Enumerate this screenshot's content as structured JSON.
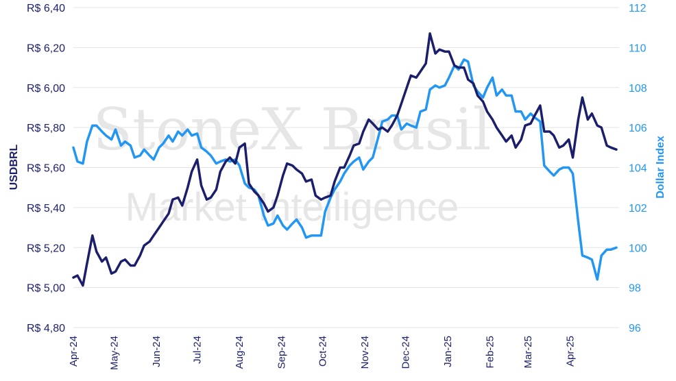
{
  "watermark": {
    "line1": "StoneX Brasil",
    "line2": "Market Intelligence"
  },
  "chart_data": {
    "type": "line",
    "ylabel": "USDBRL",
    "y2label": "Dollar Index",
    "ylim": [
      4.8,
      6.4
    ],
    "y2lim": [
      96,
      112
    ],
    "yticks": [
      4.8,
      5.0,
      5.2,
      5.4,
      5.6,
      5.8,
      6.0,
      6.2,
      6.4
    ],
    "y_tick_labels": [
      "R$ 4,80",
      "R$ 5,00",
      "R$ 5,20",
      "R$ 5,40",
      "R$ 5,60",
      "R$ 5,80",
      "R$ 6,00",
      "R$ 6,20",
      "R$ 6,40"
    ],
    "y2ticks": [
      96,
      98,
      100,
      102,
      104,
      106,
      108,
      110,
      112
    ],
    "y2_tick_labels": [
      "96",
      "98",
      "100",
      "102",
      "104",
      "106",
      "108",
      "110",
      "112"
    ],
    "xlim": [
      "2024-04-01",
      "2025-05-07"
    ],
    "x_ticks": [
      "2024-04-01",
      "2024-05-01",
      "2024-06-01",
      "2024-07-01",
      "2024-08-01",
      "2024-09-01",
      "2024-10-01",
      "2024-11-01",
      "2024-12-01",
      "2025-01-01",
      "2025-02-01",
      "2025-03-01",
      "2025-04-01"
    ],
    "x_tick_labels": [
      "Apr-24",
      "May-24",
      "Jun-24",
      "Jul-24",
      "Aug-24",
      "Sep-24",
      "Oct-24",
      "Nov-24",
      "Dec-24",
      "Jan-25",
      "Feb-25",
      "Mar-25",
      "Apr-25"
    ],
    "grid": true,
    "colors": {
      "usdbrl": "#1b1f6b",
      "dxy": "#2196f3",
      "grid": "#e3e3e3"
    },
    "series": [
      {
        "axis": "left",
        "x": [
          "2024-04-01",
          "2024-04-04",
          "2024-04-08",
          "2024-04-11",
          "2024-04-15",
          "2024-04-18",
          "2024-04-22",
          "2024-04-25",
          "2024-04-29",
          "2024-05-02",
          "2024-05-06",
          "2024-05-09",
          "2024-05-13",
          "2024-05-16",
          "2024-05-20",
          "2024-05-23",
          "2024-05-27",
          "2024-05-30",
          "2024-06-03",
          "2024-06-06",
          "2024-06-10",
          "2024-06-13",
          "2024-06-17",
          "2024-06-20",
          "2024-06-24",
          "2024-06-27",
          "2024-07-01",
          "2024-07-04",
          "2024-07-08",
          "2024-07-11",
          "2024-07-15",
          "2024-07-18",
          "2024-07-22",
          "2024-07-25",
          "2024-07-29",
          "2024-08-01",
          "2024-08-05",
          "2024-08-08",
          "2024-08-12",
          "2024-08-15",
          "2024-08-19",
          "2024-08-22",
          "2024-08-26",
          "2024-08-29",
          "2024-09-02",
          "2024-09-05",
          "2024-09-09",
          "2024-09-12",
          "2024-09-16",
          "2024-09-19",
          "2024-09-23",
          "2024-09-26",
          "2024-09-30",
          "2024-10-03",
          "2024-10-07",
          "2024-10-10",
          "2024-10-14",
          "2024-10-17",
          "2024-10-21",
          "2024-10-24",
          "2024-10-28",
          "2024-10-31",
          "2024-11-04",
          "2024-11-07",
          "2024-11-11",
          "2024-11-14",
          "2024-11-18",
          "2024-11-21",
          "2024-11-25",
          "2024-11-28",
          "2024-12-02",
          "2024-12-05",
          "2024-12-09",
          "2024-12-12",
          "2024-12-16",
          "2024-12-19",
          "2024-12-23",
          "2024-12-26",
          "2024-12-30",
          "2025-01-02",
          "2025-01-06",
          "2025-01-09",
          "2025-01-13",
          "2025-01-16",
          "2025-01-20",
          "2025-01-23",
          "2025-01-27",
          "2025-01-30",
          "2025-02-03",
          "2025-02-06",
          "2025-02-10",
          "2025-02-13",
          "2025-02-17",
          "2025-02-20",
          "2025-02-24",
          "2025-02-27",
          "2025-03-03",
          "2025-03-06",
          "2025-03-10",
          "2025-03-13",
          "2025-03-17",
          "2025-03-20",
          "2025-03-24",
          "2025-03-27",
          "2025-03-31",
          "2025-04-03",
          "2025-04-07",
          "2025-04-10",
          "2025-04-14",
          "2025-04-17",
          "2025-04-21",
          "2025-04-24",
          "2025-04-28",
          "2025-05-01",
          "2025-05-05"
        ],
        "values": [
          5.05,
          5.06,
          5.01,
          5.12,
          5.26,
          5.18,
          5.13,
          5.15,
          5.07,
          5.08,
          5.13,
          5.14,
          5.11,
          5.11,
          5.16,
          5.21,
          5.23,
          5.26,
          5.3,
          5.33,
          5.37,
          5.44,
          5.45,
          5.41,
          5.5,
          5.58,
          5.64,
          5.51,
          5.44,
          5.45,
          5.49,
          5.58,
          5.63,
          5.65,
          5.62,
          5.7,
          5.72,
          5.52,
          5.48,
          5.46,
          5.42,
          5.38,
          5.4,
          5.46,
          5.56,
          5.62,
          5.61,
          5.59,
          5.57,
          5.53,
          5.54,
          5.46,
          5.44,
          5.45,
          5.46,
          5.53,
          5.6,
          5.6,
          5.66,
          5.71,
          5.72,
          5.78,
          5.84,
          5.82,
          5.79,
          5.8,
          5.78,
          5.81,
          5.86,
          5.92,
          6.0,
          6.06,
          6.05,
          6.08,
          6.12,
          6.27,
          6.17,
          6.19,
          6.18,
          6.18,
          6.11,
          6.1,
          6.1,
          6.04,
          6.02,
          5.96,
          5.93,
          5.88,
          5.84,
          5.8,
          5.76,
          5.73,
          5.76,
          5.7,
          5.74,
          5.81,
          5.82,
          5.86,
          5.91,
          5.78,
          5.78,
          5.76,
          5.7,
          5.71,
          5.74,
          5.65,
          5.84,
          5.95,
          5.84,
          5.87,
          5.81,
          5.8,
          5.71,
          5.7,
          5.69
        ]
      },
      {
        "axis": "right",
        "x": [
          "2024-04-01",
          "2024-04-04",
          "2024-04-08",
          "2024-04-11",
          "2024-04-15",
          "2024-04-18",
          "2024-04-22",
          "2024-04-25",
          "2024-04-29",
          "2024-05-02",
          "2024-05-06",
          "2024-05-09",
          "2024-05-13",
          "2024-05-16",
          "2024-05-20",
          "2024-05-23",
          "2024-05-27",
          "2024-05-30",
          "2024-06-03",
          "2024-06-06",
          "2024-06-10",
          "2024-06-13",
          "2024-06-17",
          "2024-06-20",
          "2024-06-24",
          "2024-06-27",
          "2024-07-01",
          "2024-07-04",
          "2024-07-08",
          "2024-07-11",
          "2024-07-15",
          "2024-07-18",
          "2024-07-22",
          "2024-07-25",
          "2024-07-29",
          "2024-08-01",
          "2024-08-05",
          "2024-08-08",
          "2024-08-12",
          "2024-08-15",
          "2024-08-19",
          "2024-08-22",
          "2024-08-26",
          "2024-08-29",
          "2024-09-02",
          "2024-09-05",
          "2024-09-09",
          "2024-09-12",
          "2024-09-16",
          "2024-09-19",
          "2024-09-23",
          "2024-09-26",
          "2024-09-30",
          "2024-10-03",
          "2024-10-07",
          "2024-10-10",
          "2024-10-14",
          "2024-10-17",
          "2024-10-21",
          "2024-10-24",
          "2024-10-28",
          "2024-10-31",
          "2024-11-04",
          "2024-11-07",
          "2024-11-11",
          "2024-11-14",
          "2024-11-18",
          "2024-11-21",
          "2024-11-25",
          "2024-11-28",
          "2024-12-02",
          "2024-12-05",
          "2024-12-09",
          "2024-12-12",
          "2024-12-16",
          "2024-12-19",
          "2024-12-23",
          "2024-12-26",
          "2024-12-30",
          "2025-01-02",
          "2025-01-06",
          "2025-01-09",
          "2025-01-13",
          "2025-01-16",
          "2025-01-20",
          "2025-01-23",
          "2025-01-27",
          "2025-01-30",
          "2025-02-03",
          "2025-02-06",
          "2025-02-10",
          "2025-02-13",
          "2025-02-17",
          "2025-02-20",
          "2025-02-24",
          "2025-02-27",
          "2025-03-03",
          "2025-03-06",
          "2025-03-10",
          "2025-03-13",
          "2025-03-17",
          "2025-03-20",
          "2025-03-24",
          "2025-03-27",
          "2025-03-31",
          "2025-04-03",
          "2025-04-07",
          "2025-04-10",
          "2025-04-14",
          "2025-04-17",
          "2025-04-21",
          "2025-04-24",
          "2025-04-28",
          "2025-05-01",
          "2025-05-05"
        ],
        "values": [
          105.0,
          104.3,
          104.2,
          105.3,
          106.1,
          106.1,
          105.8,
          105.6,
          105.4,
          105.9,
          105.1,
          105.3,
          105.1,
          104.5,
          104.6,
          104.9,
          104.6,
          104.4,
          105.0,
          105.2,
          105.6,
          105.3,
          105.8,
          105.6,
          105.9,
          105.6,
          105.7,
          105.0,
          104.8,
          104.6,
          104.2,
          104.3,
          104.4,
          104.3,
          104.4,
          104.1,
          103.2,
          103.0,
          102.9,
          102.6,
          101.6,
          101.1,
          101.2,
          101.6,
          101.1,
          100.9,
          101.2,
          101.4,
          101.0,
          100.5,
          100.6,
          100.6,
          100.6,
          101.8,
          102.5,
          102.9,
          103.3,
          103.7,
          104.1,
          104.3,
          104.5,
          103.9,
          104.3,
          104.5,
          105.5,
          106.3,
          106.4,
          106.6,
          106.6,
          105.9,
          106.2,
          106.1,
          106.0,
          106.8,
          106.9,
          107.9,
          108.1,
          108.0,
          108.1,
          108.5,
          109.1,
          108.9,
          109.4,
          109.3,
          108.1,
          107.8,
          107.5,
          108.0,
          108.5,
          107.6,
          107.9,
          107.6,
          107.6,
          106.8,
          106.8,
          106.4,
          106.7,
          106.5,
          106.3,
          104.1,
          103.8,
          103.6,
          103.9,
          104.0,
          104.0,
          103.7,
          101.3,
          99.6,
          99.5,
          99.4,
          98.4,
          99.6,
          99.9,
          99.9,
          100.0
        ]
      }
    ]
  }
}
